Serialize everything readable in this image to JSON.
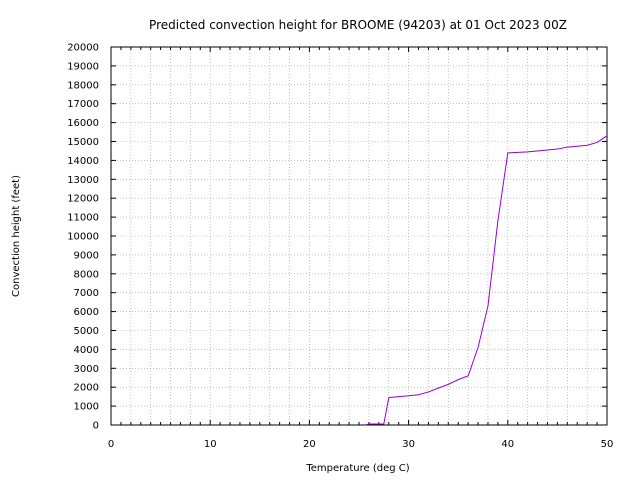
{
  "chart_data": {
    "type": "line",
    "title": "Predicted convection height for BROOME (94203) at 01 Oct 2023 00Z",
    "xlabel": "Temperature (deg C)",
    "ylabel": "Convection height (feet)",
    "xlim": [
      0,
      50
    ],
    "ylim": [
      0,
      20000
    ],
    "x_ticks": [
      0,
      10,
      20,
      30,
      40,
      50
    ],
    "y_ticks": [
      0,
      1000,
      2000,
      3000,
      4000,
      5000,
      6000,
      7000,
      8000,
      9000,
      10000,
      11000,
      12000,
      13000,
      14000,
      15000,
      16000,
      17000,
      18000,
      19000,
      20000
    ],
    "x_minor_step": 2,
    "grid": true,
    "line_color": "#9400d3",
    "series": [
      {
        "x": [
          25.6,
          26,
          27,
          27.5,
          28,
          29,
          30,
          31,
          32,
          33,
          34,
          35,
          36,
          37,
          38,
          39,
          40,
          42,
          44,
          45,
          46,
          47,
          48,
          49,
          50
        ],
        "y": [
          0,
          50,
          50,
          50,
          1450,
          1500,
          1550,
          1600,
          1750,
          1950,
          2150,
          2400,
          2600,
          4100,
          6300,
          10800,
          14400,
          14450,
          14550,
          14600,
          14700,
          14750,
          14800,
          14950,
          15300
        ]
      }
    ]
  }
}
